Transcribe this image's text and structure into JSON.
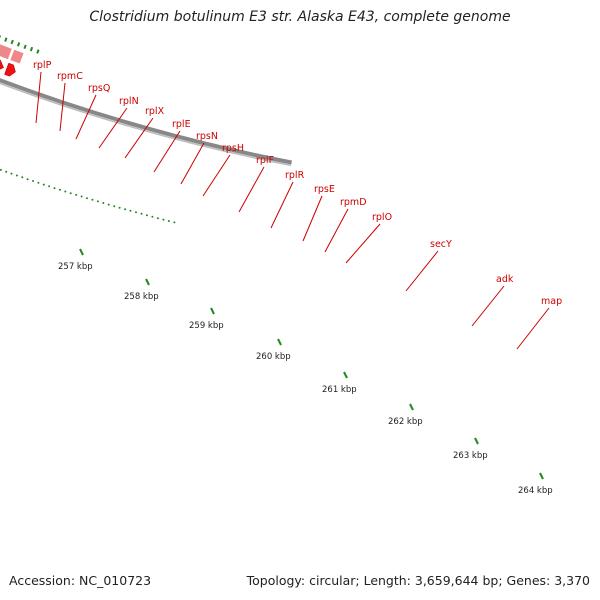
{
  "title": "Clostridium botulinum E3 str. Alaska E43, complete genome",
  "footer": {
    "accession": "Accession: NC_010723",
    "topology": "Topology: circular; Length: 3,659,644 bp; Genes: 3,370"
  },
  "colors": {
    "gene_arrow": "#ee1111",
    "feature_pink": "#ee8888",
    "secY": "#99ee33",
    "adk": "#22aaee",
    "label": "#cc0000",
    "tick": "#228822",
    "backbone": "#888888"
  },
  "genes": [
    {
      "name": "rplP"
    },
    {
      "name": "rpmC"
    },
    {
      "name": "rpsQ"
    },
    {
      "name": "rplN"
    },
    {
      "name": "rplX"
    },
    {
      "name": "rplE"
    },
    {
      "name": "rpsN"
    },
    {
      "name": "rpsH"
    },
    {
      "name": "rplF"
    },
    {
      "name": "rplR"
    },
    {
      "name": "rpsE"
    },
    {
      "name": "rpmD"
    },
    {
      "name": "rplO"
    },
    {
      "name": "secY"
    },
    {
      "name": "adk"
    },
    {
      "name": "map"
    }
  ],
  "kbp_ticks": [
    {
      "label": "257 kbp"
    },
    {
      "label": "258 kbp"
    },
    {
      "label": "259 kbp"
    },
    {
      "label": "260 kbp"
    },
    {
      "label": "261 kbp"
    },
    {
      "label": "262 kbp"
    },
    {
      "label": "263 kbp"
    },
    {
      "label": "264 kbp"
    }
  ]
}
